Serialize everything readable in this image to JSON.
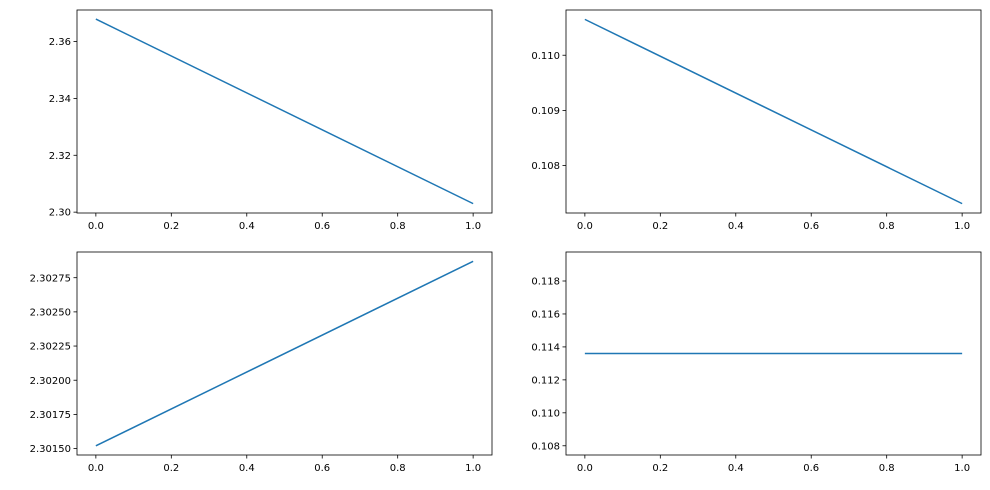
{
  "chart_data": [
    {
      "type": "line",
      "title": "",
      "xlabel": "",
      "ylabel": "",
      "x": [
        0.0,
        1.0
      ],
      "series": [
        {
          "name": "",
          "values": [
            2.3679,
            2.303
          ],
          "color": "#1f77b4"
        }
      ],
      "xlim": [
        -0.05,
        1.05
      ],
      "ylim": [
        2.2997,
        2.3711
      ],
      "xticks": [
        0.0,
        0.2,
        0.4,
        0.6,
        0.8,
        1.0
      ],
      "xtick_labels": [
        "0.0",
        "0.2",
        "0.4",
        "0.6",
        "0.8",
        "1.0"
      ],
      "yticks": [
        2.3,
        2.32,
        2.34,
        2.36
      ],
      "ytick_labels": [
        "2.30",
        "2.32",
        "2.34",
        "2.36"
      ],
      "grid": false
    },
    {
      "type": "line",
      "title": "",
      "xlabel": "",
      "ylabel": "",
      "x": [
        0.0,
        1.0
      ],
      "series": [
        {
          "name": "",
          "values": [
            0.11065,
            0.10731
          ],
          "color": "#1f77b4"
        }
      ],
      "xlim": [
        -0.05,
        1.05
      ],
      "ylim": [
        0.10714,
        0.11082
      ],
      "xticks": [
        0.0,
        0.2,
        0.4,
        0.6,
        0.8,
        1.0
      ],
      "xtick_labels": [
        "0.0",
        "0.2",
        "0.4",
        "0.6",
        "0.8",
        "1.0"
      ],
      "yticks": [
        0.108,
        0.109,
        0.11
      ],
      "ytick_labels": [
        "0.108",
        "0.109",
        "0.110"
      ],
      "grid": false
    },
    {
      "type": "line",
      "title": "",
      "xlabel": "",
      "ylabel": "",
      "x": [
        0.0,
        1.0
      ],
      "series": [
        {
          "name": "",
          "values": [
            2.30152,
            2.30287
          ],
          "color": "#1f77b4"
        }
      ],
      "xlim": [
        -0.05,
        1.05
      ],
      "ylim": [
        2.301453,
        2.302938
      ],
      "xticks": [
        0.0,
        0.2,
        0.4,
        0.6,
        0.8,
        1.0
      ],
      "xtick_labels": [
        "0.0",
        "0.2",
        "0.4",
        "0.6",
        "0.8",
        "1.0"
      ],
      "yticks": [
        2.3015,
        2.30175,
        2.302,
        2.30225,
        2.3025,
        2.30275
      ],
      "ytick_labels": [
        "2.30150",
        "2.30175",
        "2.30200",
        "2.30225",
        "2.30250",
        "2.30275"
      ],
      "grid": false
    },
    {
      "type": "line",
      "title": "",
      "xlabel": "",
      "ylabel": "",
      "x": [
        0.0,
        1.0
      ],
      "series": [
        {
          "name": "",
          "values": [
            0.1136,
            0.1136
          ],
          "color": "#1f77b4"
        }
      ],
      "xlim": [
        -0.05,
        1.05
      ],
      "ylim": [
        0.10744,
        0.11976
      ],
      "xticks": [
        0.0,
        0.2,
        0.4,
        0.6,
        0.8,
        1.0
      ],
      "xtick_labels": [
        "0.0",
        "0.2",
        "0.4",
        "0.6",
        "0.8",
        "1.0"
      ],
      "yticks": [
        0.108,
        0.11,
        0.112,
        0.114,
        0.116,
        0.118
      ],
      "ytick_labels": [
        "0.108",
        "0.110",
        "0.112",
        "0.114",
        "0.116",
        "0.118"
      ],
      "grid": false
    }
  ]
}
